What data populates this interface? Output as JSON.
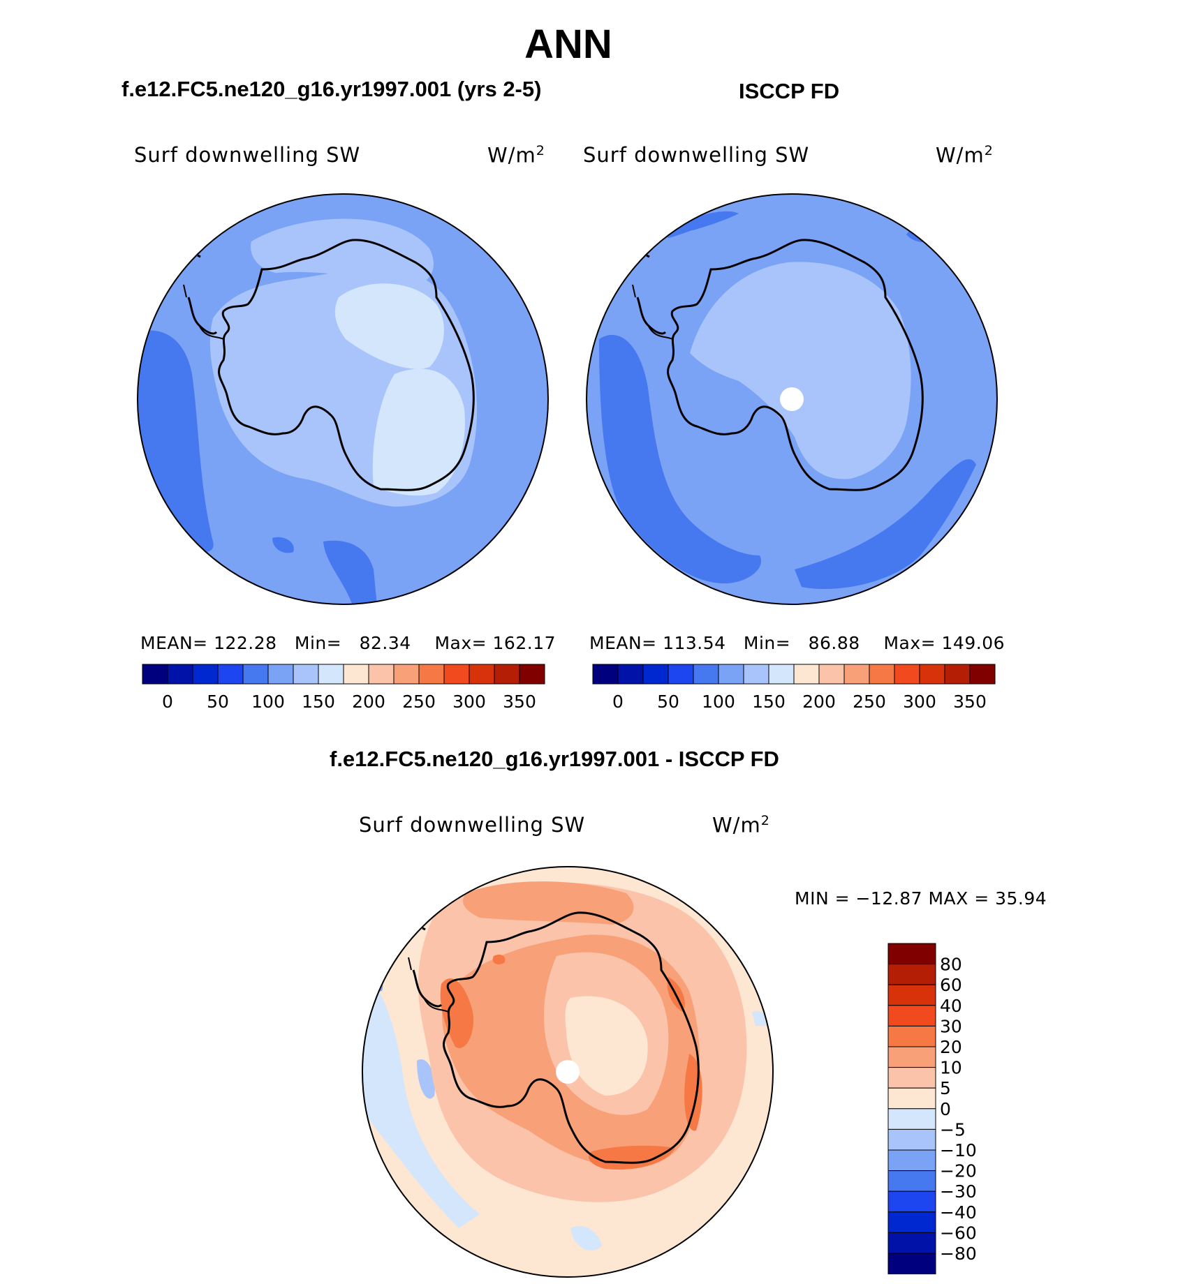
{
  "title": "ANN",
  "panels": {
    "model": {
      "title": "f.e12.FC5.ne120_g16.yr1997.001 (yrs 2-5)",
      "variable": "Surf downwelling SW",
      "units": "W/m",
      "units_exp": "2",
      "mean_label": "MEAN=",
      "mean": "122.28",
      "min_label": "Min=",
      "min": "82.34",
      "max_label": "Max=",
      "max": "162.17"
    },
    "obs": {
      "title": "ISCCP FD",
      "variable": "Surf downwelling SW",
      "units": "W/m",
      "units_exp": "2",
      "mean_label": "MEAN=",
      "mean": "113.54",
      "min_label": "Min=",
      "min": "86.88",
      "max_label": "Max=",
      "max": "149.06"
    },
    "diff": {
      "title": "f.e12.FC5.ne120_g16.yr1997.001 - ISCCP FD",
      "variable": "Surf downwelling SW",
      "units": "W/m",
      "units_exp": "2",
      "minmax_text": "MIN = −12.87 MAX =   35.94"
    }
  },
  "colorbars": {
    "absolute": {
      "labels": [
        "0",
        "50",
        "100",
        "150",
        "200",
        "250",
        "300",
        "350"
      ],
      "colors": [
        "#00007f",
        "#0012a8",
        "#0028d0",
        "#1e46f0",
        "#4678f0",
        "#7aa2f5",
        "#a8c4fa",
        "#d4e6fc",
        "#fde6d2",
        "#fbc4aa",
        "#f8a078",
        "#f57845",
        "#f04a1e",
        "#d8320a",
        "#b41e05",
        "#800000"
      ]
    },
    "difference": {
      "labels": [
        "80",
        "60",
        "40",
        "30",
        "20",
        "10",
        "5",
        "0",
        "−5",
        "−10",
        "−20",
        "−30",
        "−40",
        "−60",
        "−80"
      ],
      "colors_top_to_bottom": [
        "#800000",
        "#b41e05",
        "#d8320a",
        "#f04a1e",
        "#f57845",
        "#f8a078",
        "#fbc4aa",
        "#fde6d2",
        "#d4e6fc",
        "#a8c4fa",
        "#7aa2f5",
        "#4678f0",
        "#1e46f0",
        "#0028d0",
        "#0012a8",
        "#00007f"
      ]
    }
  }
}
